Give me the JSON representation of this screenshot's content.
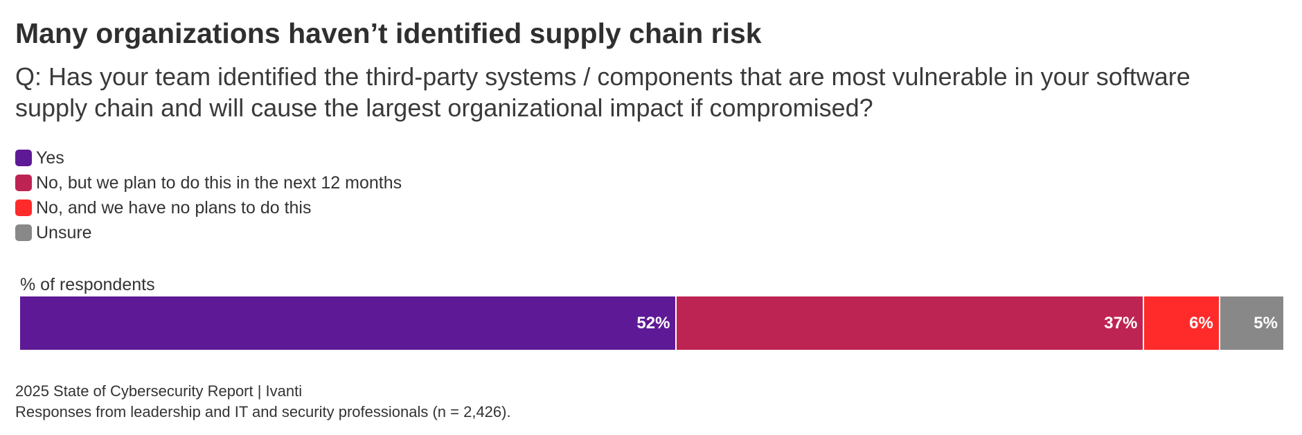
{
  "chart_data": {
    "type": "bar",
    "horizontal": true,
    "stacked": true,
    "title": "Many organizations haven’t identified supply chain risk",
    "subtitle": "Q: Has your team identified the third-party systems / components that are most vulnerable in your software supply chain and will cause the largest organizational impact if compromised?",
    "xlabel": "% of respondents",
    "xlim": [
      0,
      100
    ],
    "grid": false,
    "series": [
      {
        "name": "Yes",
        "value": 52,
        "label": "52%",
        "color": "#5e1a96"
      },
      {
        "name": "No, but we plan to do this in the next 12 months",
        "value": 37,
        "label": "37%",
        "color": "#be2453"
      },
      {
        "name": "No, and we have no plans to do this",
        "value": 6,
        "label": "6%",
        "color": "#ff2b2b"
      },
      {
        "name": "Unsure",
        "value": 5,
        "label": "5%",
        "color": "#888888"
      }
    ]
  },
  "footer": {
    "source": "2025 State of Cybersecurity Report | Ivanti",
    "note": "Responses from leadership and IT and security professionals (n = 2,426)."
  }
}
